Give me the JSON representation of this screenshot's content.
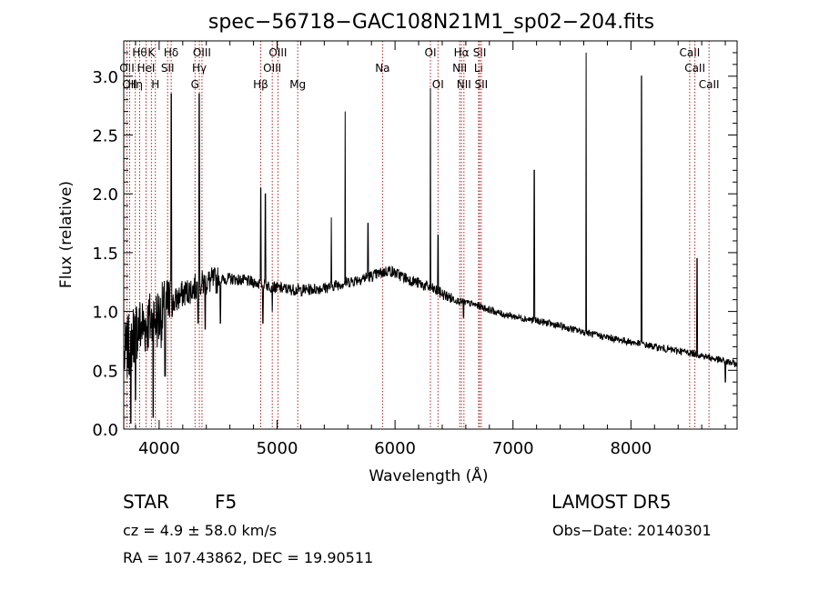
{
  "chart_data": {
    "type": "line",
    "title": "spec−56718−GAC108N21M1_sp02−204.fits",
    "xlabel": "Wavelength (Å)",
    "ylabel": "Flux (relative)",
    "xlim": [
      3700,
      8900
    ],
    "ylim": [
      0.0,
      3.3
    ],
    "xticks": [
      4000,
      5000,
      6000,
      7000,
      8000
    ],
    "xtick_labels": [
      "4000",
      "5000",
      "6000",
      "7000",
      "8000"
    ],
    "yticks": [
      0.0,
      0.5,
      1.0,
      1.5,
      2.0,
      2.5,
      3.0
    ],
    "ytick_labels": [
      "0.0",
      "0.5",
      "1.0",
      "1.5",
      "2.0",
      "2.5",
      "3.0"
    ],
    "grid": false,
    "line_color": "#000000",
    "marker_color": "#b22222",
    "continuum": [
      [
        3700,
        0.6
      ],
      [
        3800,
        0.85
      ],
      [
        3900,
        0.9
      ],
      [
        4000,
        0.95
      ],
      [
        4100,
        1.05
      ],
      [
        4200,
        1.15
      ],
      [
        4300,
        1.2
      ],
      [
        4400,
        1.25
      ],
      [
        4600,
        1.28
      ],
      [
        4800,
        1.25
      ],
      [
        5000,
        1.2
      ],
      [
        5200,
        1.18
      ],
      [
        5400,
        1.2
      ],
      [
        5600,
        1.25
      ],
      [
        5800,
        1.3
      ],
      [
        5950,
        1.35
      ],
      [
        6100,
        1.28
      ],
      [
        6300,
        1.2
      ],
      [
        6500,
        1.1
      ],
      [
        6700,
        1.05
      ],
      [
        6900,
        0.98
      ],
      [
        7100,
        0.94
      ],
      [
        7300,
        0.9
      ],
      [
        7500,
        0.85
      ],
      [
        7700,
        0.8
      ],
      [
        7900,
        0.76
      ],
      [
        8100,
        0.72
      ],
      [
        8300,
        0.68
      ],
      [
        8500,
        0.65
      ],
      [
        8700,
        0.6
      ],
      [
        8900,
        0.55
      ]
    ],
    "emission_spikes": [
      [
        4102,
        2.85
      ],
      [
        4340,
        2.85
      ],
      [
        4861,
        2.05
      ],
      [
        4959,
        1.0
      ],
      [
        4900,
        2.0
      ],
      [
        5460,
        1.8
      ],
      [
        5577,
        2.7
      ],
      [
        5770,
        1.75
      ],
      [
        6300,
        2.9
      ],
      [
        6364,
        1.65
      ],
      [
        7180,
        2.2
      ],
      [
        7620,
        3.2
      ],
      [
        8090,
        3.0
      ],
      [
        8560,
        1.45
      ]
    ],
    "absorption_dips": [
      [
        3760,
        0.05
      ],
      [
        3800,
        0.25
      ],
      [
        3950,
        0.1
      ],
      [
        4050,
        0.45
      ],
      [
        4330,
        0.9
      ],
      [
        4390,
        0.85
      ],
      [
        4520,
        0.9
      ],
      [
        4880,
        0.9
      ],
      [
        6580,
        0.95
      ],
      [
        8800,
        0.4
      ]
    ],
    "line_markers": [
      {
        "wavelength": 3727,
        "label": "OII",
        "row": 2
      },
      {
        "wavelength": 3750,
        "label": "OII",
        "row": 3
      },
      {
        "wavelength": 3798,
        "label": "Hη",
        "row": 3
      },
      {
        "wavelength": 3835,
        "label": "Hθ",
        "row": 1
      },
      {
        "wavelength": 3889,
        "label": "HeI",
        "row": 2
      },
      {
        "wavelength": 3934,
        "label": "K",
        "row": 1
      },
      {
        "wavelength": 3968,
        "label": "H",
        "row": 3
      },
      {
        "wavelength": 4072,
        "label": "SII",
        "row": 2
      },
      {
        "wavelength": 4102,
        "label": "Hδ",
        "row": 1
      },
      {
        "wavelength": 4304,
        "label": "G",
        "row": 3
      },
      {
        "wavelength": 4341,
        "label": "Hγ",
        "row": 2
      },
      {
        "wavelength": 4363,
        "label": "OIII",
        "row": 1
      },
      {
        "wavelength": 4861,
        "label": "Hβ",
        "row": 3
      },
      {
        "wavelength": 4959,
        "label": "OIII",
        "row": 2
      },
      {
        "wavelength": 5007,
        "label": "OIII",
        "row": 1
      },
      {
        "wavelength": 5175,
        "label": "Mg",
        "row": 3
      },
      {
        "wavelength": 5894,
        "label": "Na",
        "row": 2
      },
      {
        "wavelength": 6300,
        "label": "OI",
        "row": 1
      },
      {
        "wavelength": 6364,
        "label": "OI",
        "row": 3
      },
      {
        "wavelength": 6548,
        "label": "NII",
        "row": 2
      },
      {
        "wavelength": 6563,
        "label": "Hα",
        "row": 1
      },
      {
        "wavelength": 6584,
        "label": "NII",
        "row": 3
      },
      {
        "wavelength": 6708,
        "label": "Li",
        "row": 2
      },
      {
        "wavelength": 6717,
        "label": "SII",
        "row": 1
      },
      {
        "wavelength": 6731,
        "label": "SII",
        "row": 3
      },
      {
        "wavelength": 8498,
        "label": "CaII",
        "row": 1
      },
      {
        "wavelength": 8542,
        "label": "CaII",
        "row": 2
      },
      {
        "wavelength": 8662,
        "label": "CaII",
        "row": 3
      }
    ]
  },
  "info": {
    "object_class": "STAR",
    "subclass": "F5",
    "survey": "LAMOST  DR5",
    "redshift_line": "cz = 4.9  ± 58.0 km/s",
    "obs_date_line": "Obs−Date: 20140301",
    "coords_line": "RA = 107.43862, DEC =  19.90511"
  }
}
